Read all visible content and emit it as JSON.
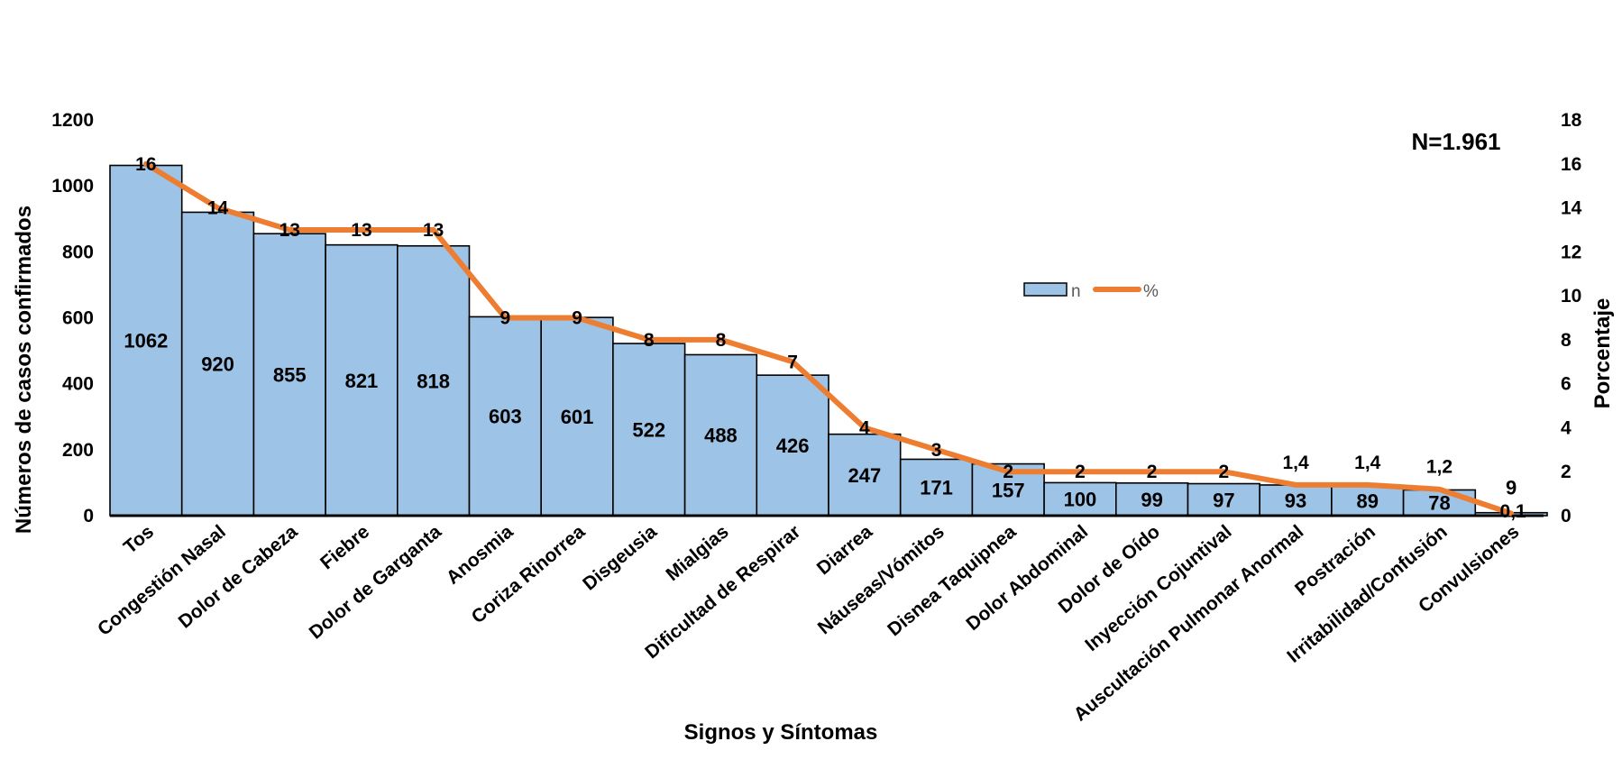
{
  "chart_data": {
    "type": "bar",
    "title": "",
    "annotation": "N=1.961",
    "xlabel": "Signos y Síntomas",
    "ylabel": "Números de casos confirmados",
    "ylabel_right": "Porcentaje",
    "ylim": [
      0,
      1200
    ],
    "ylim_right": [
      0,
      18
    ],
    "yticks": [
      "0",
      "200",
      "400",
      "600",
      "800",
      "1000",
      "1200"
    ],
    "yticks_right": [
      "0",
      "2",
      "4",
      "6",
      "8",
      "10",
      "12",
      "14",
      "16",
      "18"
    ],
    "categories": [
      "Tos",
      "Congestión Nasal",
      "Dolor de Cabeza",
      "Fiebre",
      "Dolor de Garganta",
      "Anosmia",
      "Coriza Rinorrea",
      "Disgeusia",
      "Mialgias",
      "Dificultad de Respirar",
      "Diarrea",
      "Náuseas/Vómitos",
      "Disnea Taquipnea",
      "Dolor Abdominal",
      "Dolor de Oído",
      "Inyección Cojuntival",
      "Auscultación Pulmonar Anormal",
      "Postración",
      "Irritabilidad/Confusión",
      "Convulsiones"
    ],
    "series": [
      {
        "name": "n",
        "type": "bar",
        "axis": "left",
        "color": "#9DC3E6",
        "values": [
          1062,
          920,
          855,
          821,
          818,
          603,
          601,
          522,
          488,
          426,
          247,
          171,
          157,
          100,
          99,
          97,
          93,
          89,
          78,
          9
        ],
        "labels": [
          "1062",
          "920",
          "855",
          "821",
          "818",
          "603",
          "601",
          "522",
          "488",
          "426",
          "247",
          "171",
          "157",
          "100",
          "99",
          "97",
          "93",
          "89",
          "78",
          "9"
        ]
      },
      {
        "name": "%",
        "type": "line",
        "axis": "right",
        "color": "#ED7D31",
        "values": [
          16,
          14,
          13,
          13,
          13,
          9,
          9,
          8,
          8,
          7,
          4,
          3,
          2,
          2,
          2,
          2,
          1.4,
          1.4,
          1.2,
          0.1
        ],
        "labels": [
          "16",
          "14",
          "13",
          "13",
          "13",
          "9",
          "9",
          "8",
          "8",
          "7",
          "4",
          "3",
          "2",
          "2",
          "2",
          "2",
          "1,4",
          "1,4",
          "1,2",
          "0,1"
        ]
      }
    ],
    "legend": {
      "position": "center-right",
      "items": [
        {
          "label": "n",
          "symbol": "bar",
          "color": "#9DC3E6"
        },
        {
          "label": "%",
          "symbol": "line",
          "color": "#ED7D31"
        }
      ]
    },
    "grid": false
  }
}
